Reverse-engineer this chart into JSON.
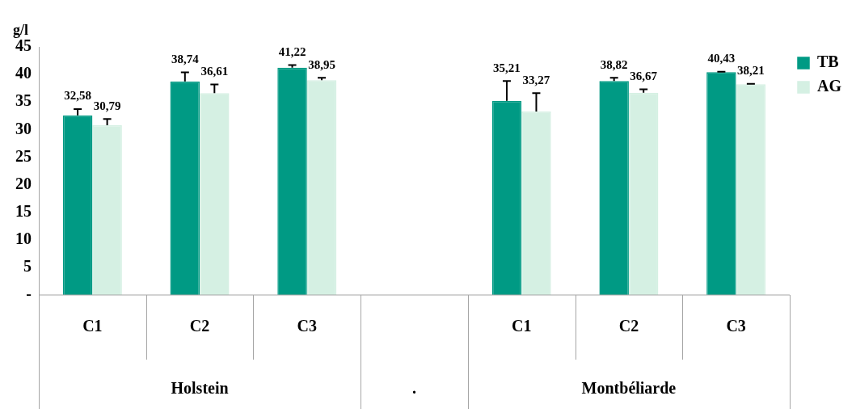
{
  "chart_data": {
    "type": "bar",
    "ylabel": "g/l",
    "categories": [
      "C1",
      "C2",
      "C3",
      null,
      "C1",
      "C2",
      "C3"
    ],
    "series": [
      {
        "name": "TB",
        "color": "#009a84",
        "values": [
          32.58,
          38.74,
          41.22,
          0,
          35.21,
          38.82,
          40.43
        ],
        "value_labels": [
          "32,58",
          "38,74",
          "41,22",
          null,
          "35,21",
          "38,82",
          "40,43"
        ],
        "errors": [
          [
            32.58,
            33.7
          ],
          [
            38.74,
            40.4
          ],
          [
            41.22,
            41.7
          ],
          null,
          [
            35.21,
            38.8
          ],
          [
            38.82,
            39.4
          ],
          [
            40.43,
            40.5
          ]
        ]
      },
      {
        "name": "AG",
        "color": "#d5f0e3",
        "values": [
          30.79,
          36.61,
          38.95,
          0,
          33.27,
          36.67,
          38.21
        ],
        "value_labels": [
          "30,79",
          "36,61",
          "38,95",
          null,
          "33,27",
          "36,67",
          "38,21"
        ],
        "errors": [
          [
            30.79,
            31.9
          ],
          [
            36.61,
            38.2
          ],
          [
            38.95,
            39.4
          ],
          null,
          [
            33.27,
            36.6
          ],
          [
            36.67,
            37.3
          ],
          [
            38.21,
            38.3
          ]
        ]
      }
    ],
    "annotations": [
      "Holstein",
      ".",
      "Montbéliarde"
    ],
    "ylim": [
      0,
      45
    ],
    "yticks": [
      {
        "value": 0,
        "label": "-"
      },
      5,
      10,
      15,
      20,
      25,
      30,
      35,
      40,
      45
    ],
    "grid": false,
    "legend": "top right"
  }
}
